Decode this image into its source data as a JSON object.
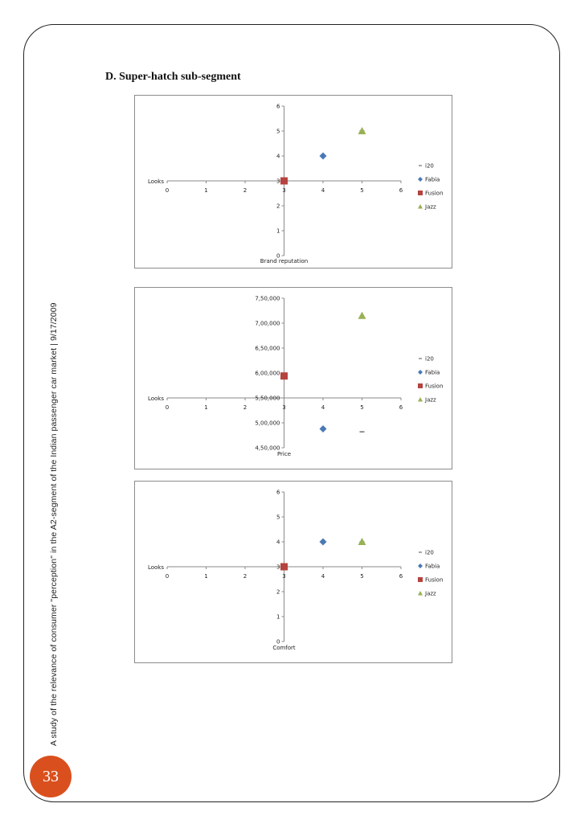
{
  "sidebar_text": "A study of the relevance of consumer \"perception\" in the A2-segment of the Indian passenger car market | 9/17/2009",
  "page_number": "33",
  "section_heading": "D.  Super-hatch sub-segment",
  "colors": {
    "i20": "#6f6f6f",
    "Fabia": "#4a7ab5",
    "Fusion": "#b5433f",
    "Jazz": "#98b154",
    "badge": "#d9501e"
  },
  "chart_data": [
    {
      "type": "scatter",
      "xlabel": "Looks",
      "ylabel": "Brand reputation",
      "xlim": [
        0,
        6
      ],
      "ylim": [
        0,
        6
      ],
      "x_axis_at": 3,
      "x_ticks": [
        "0",
        "1",
        "2",
        "3",
        "4",
        "5",
        "6"
      ],
      "y_ticks": [
        "0",
        "1",
        "2",
        "3",
        "4",
        "5",
        "6"
      ],
      "legend_position": "right",
      "series": [
        {
          "name": "i20",
          "marker": "dash",
          "points": [
            [
              5,
              5
            ]
          ]
        },
        {
          "name": "Fabia",
          "marker": "diamond",
          "points": [
            [
              4,
              4
            ]
          ]
        },
        {
          "name": "Fusion",
          "marker": "square",
          "points": [
            [
              3,
              3
            ]
          ]
        },
        {
          "name": "Jazz",
          "marker": "triangle",
          "points": [
            [
              5,
              5
            ]
          ]
        }
      ]
    },
    {
      "type": "scatter",
      "xlabel": "Looks",
      "ylabel": "Price",
      "xlim": [
        0,
        6
      ],
      "ylim": [
        450000,
        750000
      ],
      "x_axis_at": 550000,
      "x_ticks": [
        "0",
        "1",
        "2",
        "3",
        "4",
        "5",
        "6"
      ],
      "y_ticks": [
        "4,50,000",
        "5,00,000",
        "5,50,000",
        "6,00,000",
        "6,50,000",
        "7,00,000",
        "7,50,000"
      ],
      "legend_position": "right",
      "series": [
        {
          "name": "i20",
          "marker": "dash",
          "points": [
            [
              5,
              482000
            ]
          ]
        },
        {
          "name": "Fabia",
          "marker": "diamond",
          "points": [
            [
              4,
              488000
            ]
          ]
        },
        {
          "name": "Fusion",
          "marker": "square",
          "points": [
            [
              3,
              594000
            ]
          ]
        },
        {
          "name": "Jazz",
          "marker": "triangle",
          "points": [
            [
              5,
              715000
            ]
          ]
        }
      ]
    },
    {
      "type": "scatter",
      "xlabel": "Looks",
      "ylabel": "Comfort",
      "xlim": [
        0,
        6
      ],
      "ylim": [
        0,
        6
      ],
      "x_axis_at": 3,
      "x_ticks": [
        "0",
        "1",
        "2",
        "3",
        "4",
        "5",
        "6"
      ],
      "y_ticks": [
        "0",
        "1",
        "2",
        "3",
        "4",
        "5",
        "6"
      ],
      "legend_position": "right",
      "series": [
        {
          "name": "i20",
          "marker": "dash",
          "points": [
            [
              5,
              4
            ]
          ]
        },
        {
          "name": "Fabia",
          "marker": "diamond",
          "points": [
            [
              4,
              4
            ]
          ]
        },
        {
          "name": "Fusion",
          "marker": "square",
          "points": [
            [
              3,
              3
            ]
          ]
        },
        {
          "name": "Jazz",
          "marker": "triangle",
          "points": [
            [
              5,
              4
            ]
          ]
        }
      ]
    }
  ]
}
